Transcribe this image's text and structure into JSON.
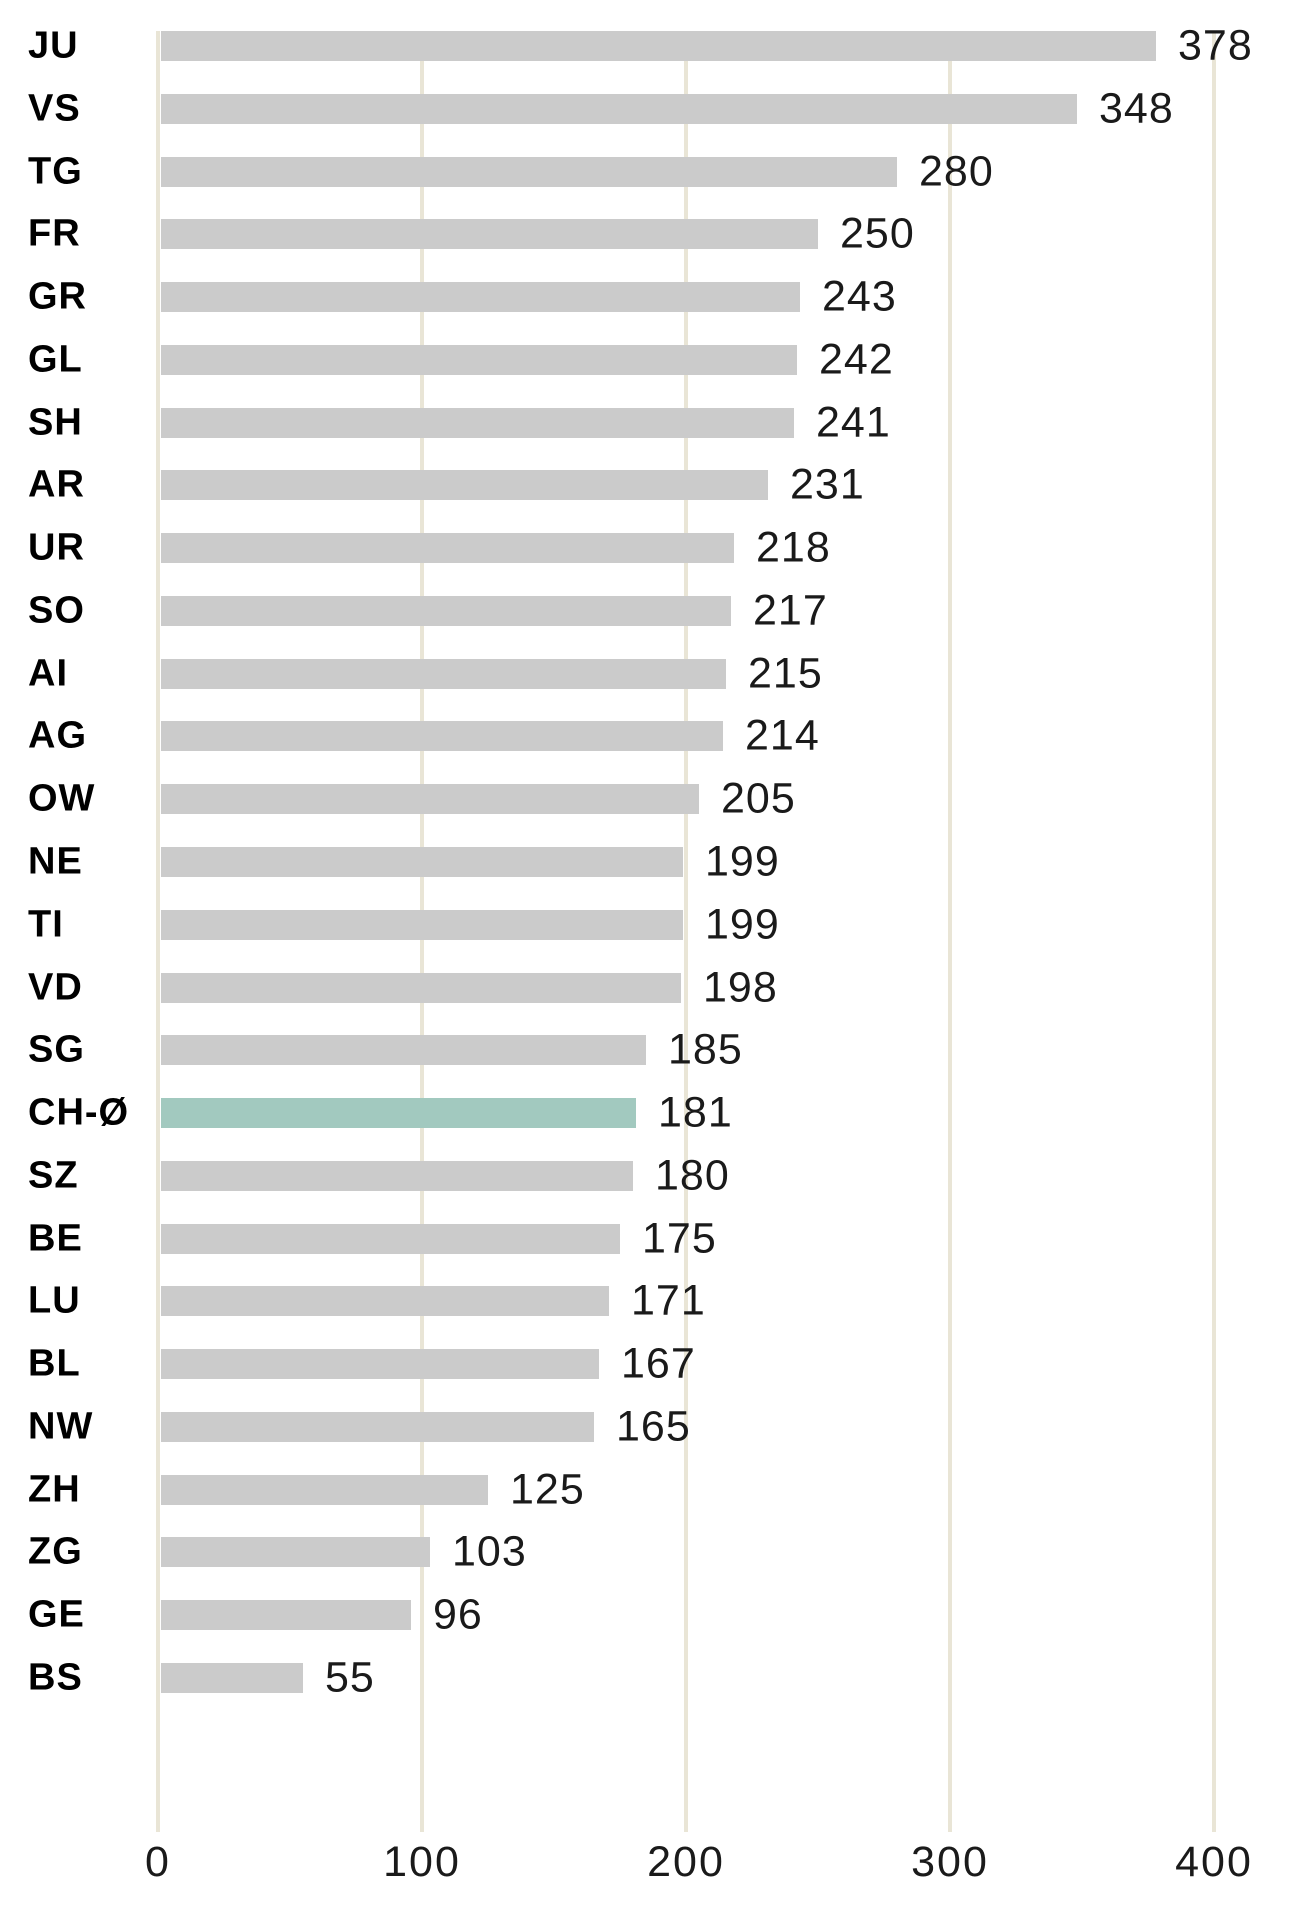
{
  "chart_data": {
    "type": "bar",
    "orientation": "horizontal",
    "title": "",
    "xlabel": "",
    "ylabel": "",
    "categories": [
      "JU",
      "VS",
      "TG",
      "FR",
      "GR",
      "GL",
      "SH",
      "AR",
      "UR",
      "SO",
      "AI",
      "AG",
      "OW",
      "NE",
      "TI",
      "VD",
      "SG",
      "CH-Ø",
      "SZ",
      "BE",
      "LU",
      "BL",
      "NW",
      "ZH",
      "ZG",
      "GE",
      "BS"
    ],
    "values": [
      378,
      348,
      280,
      250,
      243,
      242,
      241,
      231,
      218,
      217,
      215,
      214,
      205,
      199,
      199,
      198,
      185,
      181,
      180,
      175,
      171,
      167,
      165,
      125,
      103,
      96,
      55
    ],
    "value_labels": [
      "378",
      "348",
      "280",
      "250",
      "243",
      "242",
      "241",
      "231",
      "218",
      "217",
      "215",
      "214",
      "205",
      "199",
      "199",
      "198",
      "185",
      "181",
      "180",
      "175",
      "171",
      "167",
      "165",
      "125",
      "103",
      "96",
      "55"
    ],
    "highlight_category": "CH-Ø",
    "highlight_index": 17,
    "xlim": [
      0,
      400
    ],
    "x_ticks": [
      "0",
      "100",
      "200",
      "300",
      "400"
    ],
    "x_tick_values": [
      0,
      100,
      200,
      300,
      400
    ],
    "grid": true,
    "legend": "none",
    "colors": {
      "bar": "#cbcbcb",
      "highlight": "#a2c9bf",
      "gridline": "#e9e5d6",
      "category_text": "#000000",
      "value_text": "#1a1a1a"
    }
  }
}
